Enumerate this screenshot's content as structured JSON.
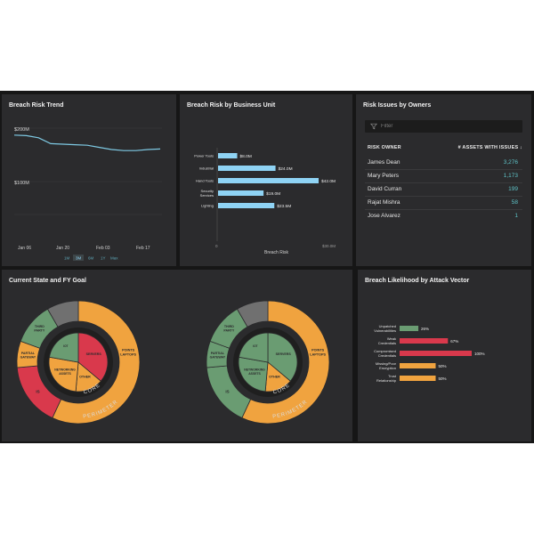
{
  "colors": {
    "background": "#161616",
    "panel": "#2b2b2d",
    "accent_blue": "#8fd3f4",
    "trend_line": "#7ec9e3",
    "teal_value": "#5fc3c8",
    "red": "#d9394c",
    "orange": "#f0a33f",
    "green": "#6a9c72",
    "gray": "#707070"
  },
  "trend": {
    "title": "Breach Risk Trend",
    "y_labels": [
      "$200M",
      "$100M"
    ],
    "x_labels": [
      "Jan 06",
      "Jan 20",
      "Feb 03",
      "Feb 17"
    ],
    "ranges": [
      "1M",
      "3M",
      "6M",
      "1Y",
      "Max"
    ],
    "selected_range": "3M"
  },
  "business_unit": {
    "title": "Breach Risk by Business Unit",
    "x_labels": [
      "0",
      "$30.0M"
    ],
    "x_title": "Breach Risk"
  },
  "owners": {
    "title": "Risk Issues by Owners",
    "filter_placeholder": "Filter",
    "col_owner": "RISK OWNER",
    "col_assets": "# ASSETS WITH ISSUES",
    "rows": [
      {
        "name": "James Dean",
        "value": "3,276"
      },
      {
        "name": "Mary Peters",
        "value": "1,173"
      },
      {
        "name": "David Curran",
        "value": "199"
      },
      {
        "name": "Rajat Mishra",
        "value": "58"
      },
      {
        "name": "Jose Alvarez",
        "value": "1"
      }
    ]
  },
  "current_state": {
    "title": "Current State and FY Goal",
    "left": {
      "inner": [
        {
          "label": "SERVERS",
          "color": "#d9394c"
        },
        {
          "label": "OTHER",
          "color": "#f0a33f"
        },
        {
          "label": "NETWORKING ASSETS",
          "color": "#f0a33f"
        },
        {
          "label": "IOT",
          "color": "#6a9c72"
        }
      ],
      "outer": [
        {
          "label": "POINTS LAPTOPS",
          "color": "#f0a33f"
        },
        {
          "label": "IS",
          "color": "#d9394c"
        },
        {
          "label": "PARTIAL GATEWAY",
          "color": "#f0a33f"
        },
        {
          "label": "THIRD PARTY",
          "color": "#6a9c72"
        },
        {
          "label": "",
          "color": "#707070"
        }
      ],
      "core_label": "CORE",
      "perimeter_label": "PERIMETER"
    },
    "right": {
      "inner": [
        {
          "label": "SERVERS",
          "color": "#6a9c72"
        },
        {
          "label": "OTHER",
          "color": "#f0a33f"
        },
        {
          "label": "NETWORKING ASSETS",
          "color": "#6a9c72"
        },
        {
          "label": "IOT",
          "color": "#6a9c72"
        }
      ],
      "outer": [
        {
          "label": "POINTS LAPTOPS",
          "color": "#f0a33f"
        },
        {
          "label": "IS",
          "color": "#6a9c72"
        },
        {
          "label": "PARTIAL GATEWAY",
          "color": "#6a9c72"
        },
        {
          "label": "THIRD PARTY",
          "color": "#6a9c72"
        },
        {
          "label": "",
          "color": "#707070"
        }
      ],
      "core_label": "CORE",
      "perimeter_label": "PERIMETER"
    }
  },
  "attack_vector": {
    "title": "Breach Likelihood by Attack Vector"
  },
  "chart_data": [
    {
      "type": "line",
      "title": "Breach Risk Trend",
      "x_ticks": [
        "Jan 06",
        "Jan 20",
        "Feb 03",
        "Feb 17"
      ],
      "y_ticks": [
        "$200M",
        "$100M"
      ],
      "unit": "$M",
      "points": [
        {
          "x": "Jan 06",
          "y": 187
        },
        {
          "x": "Jan 13",
          "y": 186
        },
        {
          "x": "Jan 17",
          "y": 182
        },
        {
          "x": "Jan 20",
          "y": 171
        },
        {
          "x": "Jan 24",
          "y": 170
        },
        {
          "x": "Jan 31",
          "y": 169
        },
        {
          "x": "Feb 03",
          "y": 168
        },
        {
          "x": "Feb 07",
          "y": 164
        },
        {
          "x": "Feb 10",
          "y": 160
        },
        {
          "x": "Feb 14",
          "y": 158
        },
        {
          "x": "Feb 17",
          "y": 158
        },
        {
          "x": "Feb 20",
          "y": 160
        },
        {
          "x": "Feb 24",
          "y": 161
        }
      ],
      "ylim": [
        70,
        200
      ]
    },
    {
      "type": "bar",
      "orientation": "horizontal",
      "title": "Breach Risk by Business Unit",
      "xlabel": "Breach Risk",
      "categories": [
        "Power Tools",
        "Industrial",
        "Hand Tools",
        "Security Services",
        "Lighting"
      ],
      "values": [
        8.0,
        24.0,
        42.0,
        19.0,
        23.5
      ],
      "value_labels": [
        "$8.0M",
        "$24.0M",
        "$42.0M",
        "$19.0M",
        "$23.5M"
      ],
      "xlim": [
        0,
        44
      ],
      "color": "#8fd3f4"
    },
    {
      "type": "bar",
      "orientation": "horizontal",
      "title": "Breach Likelihood by Attack Vector",
      "categories": [
        "Unpatched Vulnerabilities",
        "Weak Credentials",
        "Compromised Credentials",
        "Missing/Poor Encryption",
        "Trust Relationship"
      ],
      "values": [
        26,
        67,
        100,
        50,
        50
      ],
      "value_labels": [
        "26%",
        "67%",
        "100%",
        "50%",
        "50%"
      ],
      "colors": [
        "#6a9c72",
        "#d9394c",
        "#d9394c",
        "#f0a33f",
        "#f0a33f"
      ],
      "xlim": [
        0,
        100
      ]
    }
  ]
}
